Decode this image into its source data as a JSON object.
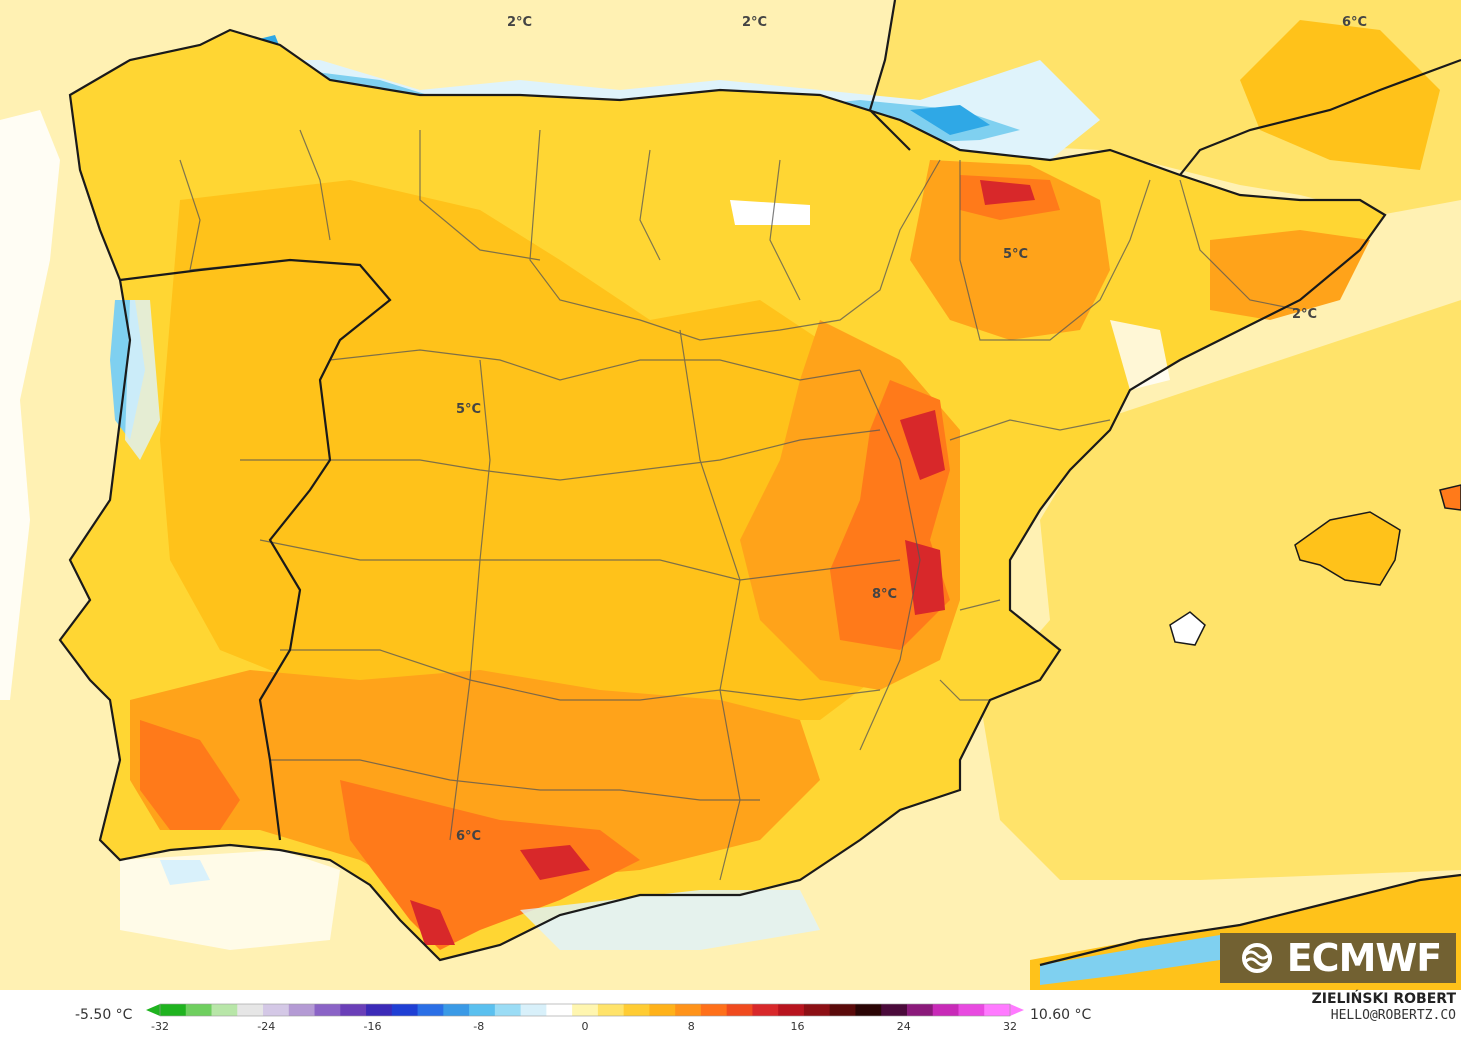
{
  "map": {
    "region": "Iberian Peninsula",
    "colors": {
      "sea": "#fff1b3",
      "land_base": "#ffd633",
      "warm_1": "#ffc21a",
      "warm_2": "#ffa31a",
      "warm_3": "#ff7a1a",
      "warm_4": "#f0501e",
      "hot": "#d8282a",
      "cool_pale": "#dff3fb",
      "cool": "#7fd0f0",
      "cool_deep": "#2fa8e6",
      "border": "#1a1a1a",
      "regional_border": "#555555"
    },
    "labels": [
      {
        "text": "2°C"
      },
      {
        "text": "2°C"
      },
      {
        "text": "6°C"
      },
      {
        "text": "5°C"
      },
      {
        "text": "2°C"
      },
      {
        "text": "5°C"
      },
      {
        "text": "8°C"
      },
      {
        "text": "6°C"
      }
    ]
  },
  "logo": {
    "text": "ECMWF",
    "icon": "ecmwf-logo-icon"
  },
  "legend": {
    "min_label": "-5.50 °C",
    "max_label": "10.60 °C",
    "ticks": [
      "-32",
      "-24",
      "-16",
      "-8",
      "0",
      "8",
      "16",
      "24",
      "32"
    ],
    "range": [
      -32,
      32
    ],
    "colors": [
      "#1fb31f",
      "#6fcf5f",
      "#b8e6a8",
      "#e6e6e6",
      "#d4c8e6",
      "#b49ad4",
      "#8a63c6",
      "#6a3fb8",
      "#3b2ab8",
      "#1f3fd4",
      "#2a6fe6",
      "#3a9ae6",
      "#5ac0ef",
      "#9adcf5",
      "#d8f0fa",
      "#ffffff",
      "#fff6b0",
      "#ffe36a",
      "#ffcc33",
      "#ffb21a",
      "#ff931a",
      "#ff701a",
      "#f04a1e",
      "#d8282a",
      "#b8141e",
      "#8c0f14",
      "#5a0a0a",
      "#2a0505",
      "#4a0a3a",
      "#8a1a7a",
      "#c82ab8",
      "#e84ae0",
      "#ff7aff"
    ]
  },
  "credit": {
    "name": "ZIELIŃSKI ROBERT",
    "email": "HELLO@ROBERTZ.CO"
  }
}
